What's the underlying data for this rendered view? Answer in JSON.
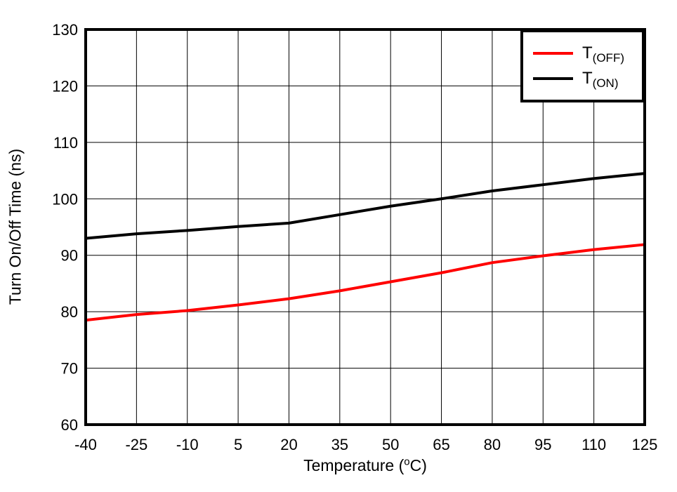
{
  "figure": {
    "ylabel": "Turn On/Off Time (ns)",
    "xlabel_pre": "Temperature (",
    "xlabel_sup": "o",
    "xlabel_post": "C)"
  },
  "legend": {
    "items": [
      {
        "main": "T",
        "sub": "(OFF)",
        "color": "#ff0000"
      },
      {
        "main": "T",
        "sub": "(ON)",
        "color": "#000000"
      }
    ]
  },
  "chart_data": {
    "type": "line",
    "title": "",
    "xlabel": "Temperature (°C)",
    "ylabel": "Turn On/Off Time (ns)",
    "x": [
      -40,
      -25,
      -10,
      5,
      20,
      35,
      50,
      65,
      80,
      95,
      110,
      125
    ],
    "series": [
      {
        "name": "T(OFF)",
        "color": "#ff0000",
        "values": [
          78.5,
          79.5,
          80.2,
          81.2,
          82.3,
          83.7,
          85.3,
          86.9,
          88.7,
          89.9,
          91.0,
          91.9
        ]
      },
      {
        "name": "T(ON)",
        "color": "#000000",
        "values": [
          93.0,
          93.8,
          94.4,
          95.1,
          95.7,
          97.2,
          98.7,
          100.0,
          101.4,
          102.5,
          103.6,
          104.5
        ]
      }
    ],
    "xlim": [
      -40,
      125
    ],
    "ylim": [
      60,
      130
    ],
    "xticks": [
      -40,
      -25,
      -10,
      5,
      20,
      35,
      50,
      65,
      80,
      95,
      110,
      125
    ],
    "yticks": [
      60,
      70,
      80,
      90,
      100,
      110,
      120,
      130
    ],
    "grid": true,
    "legend_position": "top-right"
  }
}
